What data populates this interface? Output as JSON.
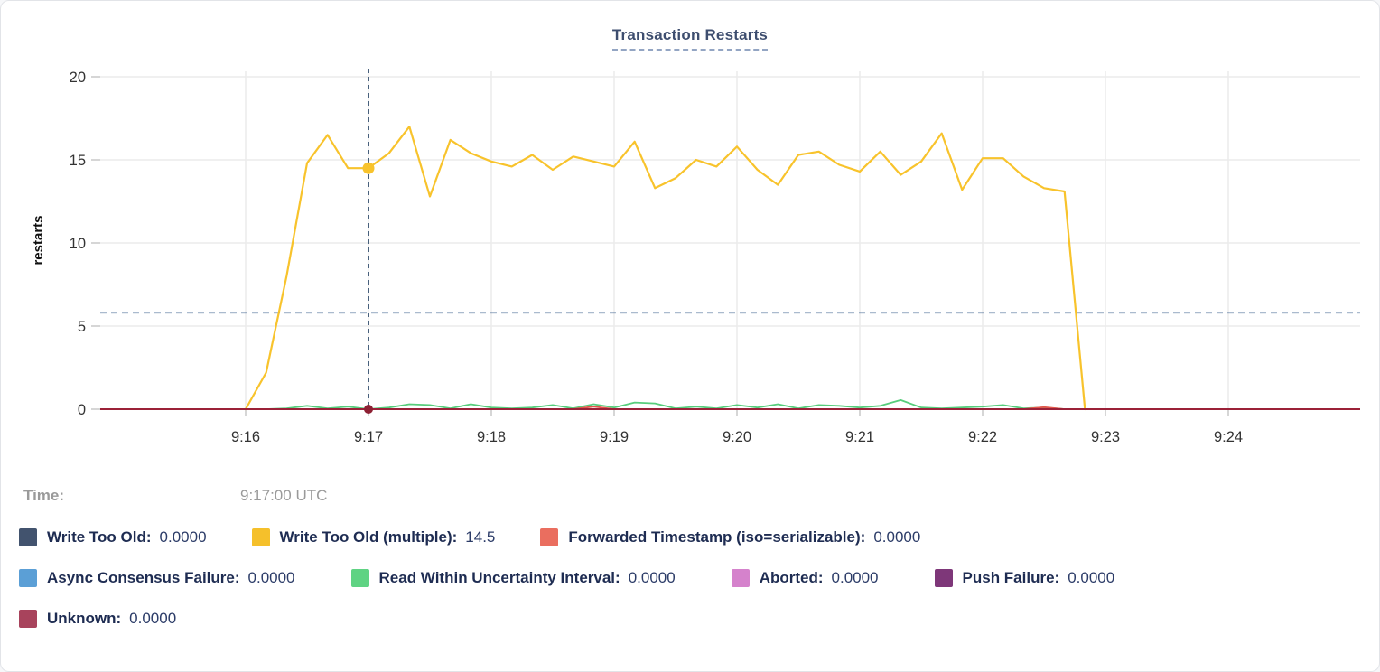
{
  "title": "Transaction Restarts",
  "time_row": {
    "label": "Time:",
    "value": "9:17:00 UTC"
  },
  "legend": {
    "rows": [
      [
        {
          "name": "write-too-old",
          "color": "#42536e",
          "label": "Write Too Old:",
          "value": "0.0000"
        },
        {
          "name": "write-too-old-multiple",
          "color": "#f5c02b",
          "label": "Write Too Old (multiple):",
          "value": "14.5"
        },
        {
          "name": "forwarded-timestamp",
          "color": "#ea6e5f",
          "label": "Forwarded Timestamp (iso=serializable):",
          "value": "0.0000"
        }
      ],
      [
        {
          "name": "async-consensus-failure",
          "color": "#5b9fd6",
          "label": "Async Consensus Failure:",
          "value": "0.0000"
        },
        {
          "name": "read-within-uncertainty-interval",
          "color": "#5fd383",
          "label": "Read Within Uncertainty Interval:",
          "value": "0.0000"
        },
        {
          "name": "aborted",
          "color": "#d582cc",
          "label": "Aborted:",
          "value": "0.0000"
        },
        {
          "name": "push-failure",
          "color": "#7e3779",
          "label": "Push Failure:",
          "value": "0.0000"
        }
      ],
      [
        {
          "name": "unknown",
          "color": "#a8435c",
          "label": "Unknown:",
          "value": "0.0000"
        }
      ]
    ]
  },
  "chart_data": {
    "type": "line",
    "title": "Transaction Restarts",
    "xlabel": "",
    "ylabel": "restarts",
    "ylim": [
      0,
      20
    ],
    "yticks": [
      0,
      5,
      10,
      15,
      20
    ],
    "xticks": [
      {
        "minute": 16,
        "label": "9:16"
      },
      {
        "minute": 17,
        "label": "9:17"
      },
      {
        "minute": 18,
        "label": "9:18"
      },
      {
        "minute": 19,
        "label": "9:19"
      },
      {
        "minute": 20,
        "label": "9:20"
      },
      {
        "minute": 21,
        "label": "9:21"
      },
      {
        "minute": 22,
        "label": "9:22"
      },
      {
        "minute": 23,
        "label": "9:23"
      },
      {
        "minute": 24,
        "label": "9:24"
      }
    ],
    "grid": true,
    "legend_position": "bottom",
    "x_start_minute": 16,
    "x_interval_seconds": 10,
    "threshold_line_y": 5.8,
    "threshold_line_color": "#54749c",
    "crosshair": {
      "x_minute": 17,
      "time": "9:17:00 UTC",
      "color": "#35506f",
      "points": [
        {
          "series": "Write Too Old (multiple)",
          "value": 14.5,
          "color": "#f8c32c",
          "radius": 6.5
        },
        {
          "series": "Unknown",
          "value": 0,
          "color": "#8d2033",
          "radius": 5
        }
      ]
    },
    "series": [
      {
        "name": "Write Too Old (multiple)",
        "color": "#f8c32c",
        "width": 2.2,
        "values": [
          0,
          2.2,
          8.0,
          14.8,
          16.5,
          14.5,
          14.5,
          15.4,
          17.0,
          12.8,
          16.2,
          15.4,
          14.9,
          14.6,
          15.3,
          14.4,
          15.2,
          14.9,
          14.6,
          16.1,
          13.3,
          13.9,
          15.0,
          14.6,
          15.8,
          14.4,
          13.5,
          15.3,
          15.5,
          14.7,
          14.3,
          15.5,
          14.1,
          14.9,
          16.6,
          13.2,
          15.1,
          15.1,
          14.0,
          13.3,
          13.1,
          0
        ]
      },
      {
        "name": "Read Within Uncertainty Interval",
        "color": "#57cd7c",
        "width": 1.8,
        "values": [
          0,
          0,
          0.05,
          0.2,
          0.05,
          0.15,
          0,
          0.1,
          0.3,
          0.25,
          0.05,
          0.3,
          0.1,
          0.05,
          0.1,
          0.25,
          0.05,
          0.3,
          0.1,
          0.4,
          0.35,
          0.05,
          0.15,
          0.05,
          0.25,
          0.1,
          0.3,
          0.05,
          0.25,
          0.2,
          0.1,
          0.2,
          0.55,
          0.1,
          0.05,
          0.1,
          0.15,
          0.25,
          0.05,
          0.1,
          0,
          0
        ]
      },
      {
        "name": "Forwarded Timestamp (iso=serializable)",
        "color": "#e2574c",
        "width": 1.8,
        "values": [
          0,
          0,
          0,
          0,
          0,
          0,
          0,
          0,
          0,
          0,
          0,
          0,
          0,
          0,
          0,
          0,
          0,
          0.15,
          0,
          0,
          0,
          0,
          0,
          0,
          0,
          0,
          0,
          0,
          0,
          0,
          0,
          0,
          0,
          0,
          0,
          0,
          0,
          0,
          0,
          0.12,
          0,
          0
        ]
      },
      {
        "name": "Unknown",
        "color": "#9b2138",
        "width": 2,
        "flat_full_width": 0
      }
    ]
  }
}
